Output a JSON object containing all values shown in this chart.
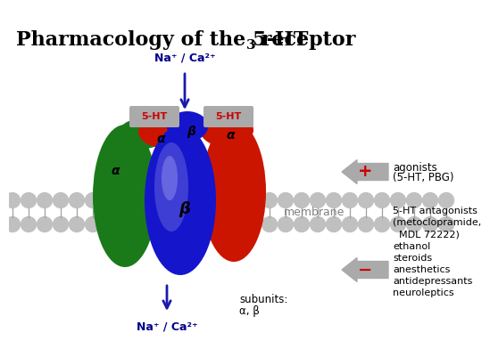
{
  "bg_color": "#ffffff",
  "title_part1": "Pharmacology of the 5-HT",
  "title_sub": "3",
  "title_part2": " receptor",
  "ion_top": "Na⁺ / Ca²⁺",
  "ion_bottom": "Na⁺ / Ca²⁺",
  "ion_color": "#00008B",
  "arrow_color": "#1a1aaa",
  "fivht_label": "5-HT",
  "fivht_bg": "#aaaaaa",
  "fivht_text_color": "#cc0000",
  "alpha_label": "α",
  "beta_label": "β",
  "green_color": "#1a7a1a",
  "blue_color": "#1515cc",
  "blue_light": "#6666ee",
  "red_color": "#cc1500",
  "gray_arrow": "#a0a0a0",
  "plus_color": "#cc0000",
  "minus_color": "#cc0000",
  "agonists_line1": "agonists",
  "agonists_line2": "(5-HT, PBG)",
  "antag_text": "5-HT antagonists\n(metoclopramide,\n  MDL 72222)\nethanol\nsteroids\nanesthetics\nantidepressants\nneuroleptics",
  "membrane_label": "membrane",
  "subunits_label": "subunits:",
  "subunits_label2": "α, β",
  "text_black": "#000000",
  "text_blue": "#00008B",
  "text_gray": "#808080"
}
